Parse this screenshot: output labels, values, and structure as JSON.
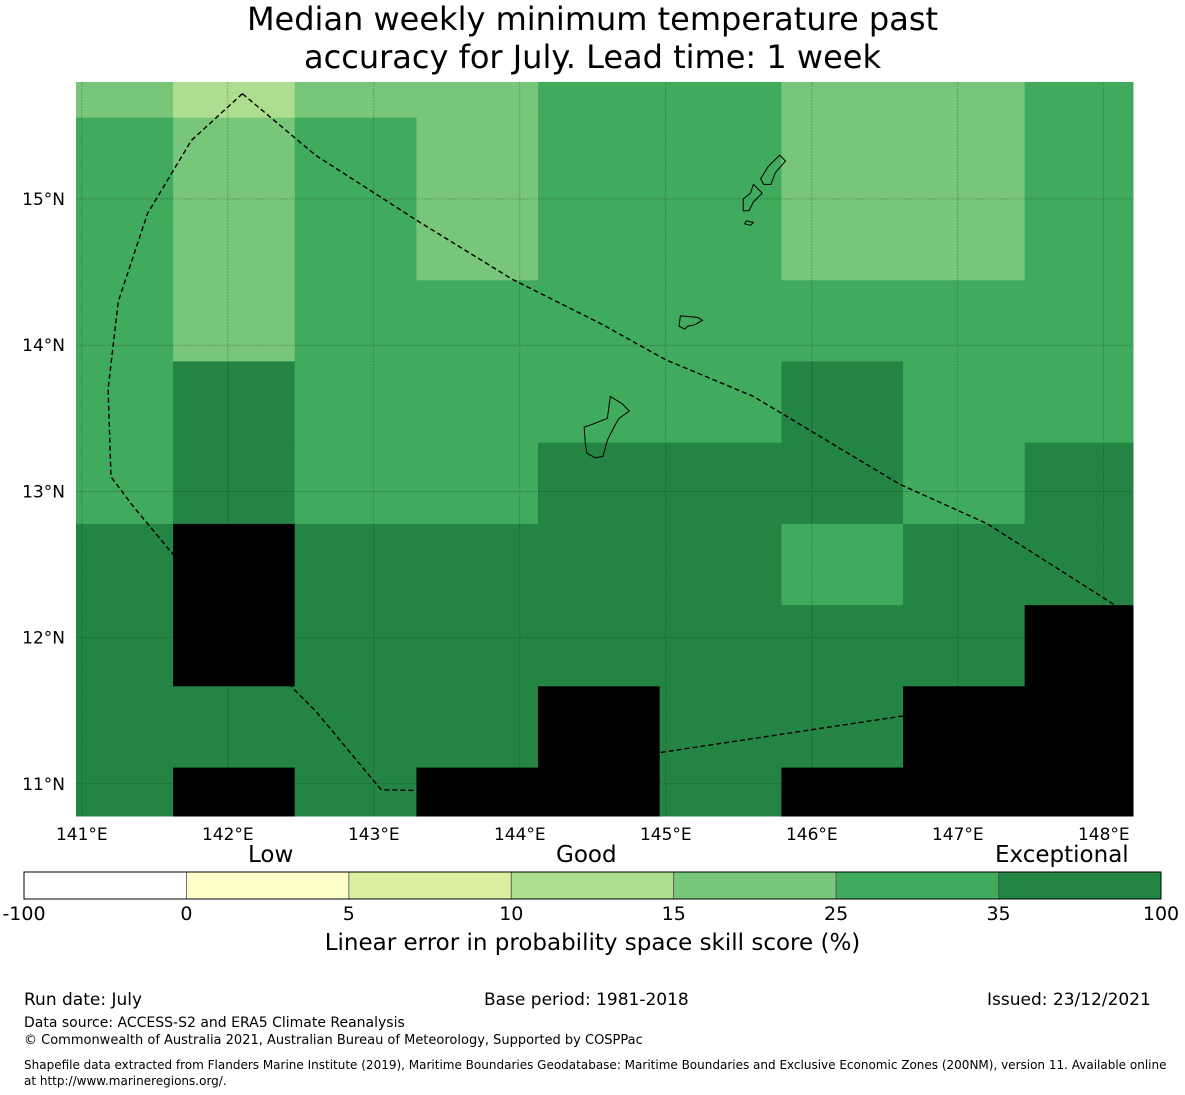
{
  "title": {
    "line1": "Median weekly minimum temperature past",
    "line2": "accuracy for July. Lead time: 1 week"
  },
  "map": {
    "lon_range": [
      140.96,
      148.2
    ],
    "lat_range": [
      10.78,
      15.8
    ],
    "lon_ticks": [
      {
        "value": 141,
        "label": "141°E"
      },
      {
        "value": 142,
        "label": "142°E"
      },
      {
        "value": 143,
        "label": "143°E"
      },
      {
        "value": 144,
        "label": "144°E"
      },
      {
        "value": 145,
        "label": "145°E"
      },
      {
        "value": 146,
        "label": "146°E"
      },
      {
        "value": 147,
        "label": "147°E"
      },
      {
        "value": 148,
        "label": "148°E"
      }
    ],
    "lat_ticks": [
      {
        "value": 15,
        "label": "15°N"
      },
      {
        "value": 14,
        "label": "14°N"
      },
      {
        "value": 13,
        "label": "13°N"
      },
      {
        "value": 12,
        "label": "12°N"
      },
      {
        "value": 11,
        "label": "11°N"
      }
    ],
    "grid_lines": true,
    "cell_lon_edges": [
      140.96,
      141.625,
      142.458,
      143.292,
      144.125,
      144.958,
      145.792,
      146.625,
      147.458,
      148.2
    ],
    "cell_lat_edges": [
      15.8,
      15.556,
      14.444,
      13.889,
      13.333,
      12.778,
      12.222,
      11.667,
      11.111,
      10.78
    ],
    "cell_classes": [
      [
        4,
        3,
        4,
        4,
        5,
        5,
        4,
        4,
        5
      ],
      [
        5,
        4,
        5,
        4,
        5,
        5,
        4,
        4,
        5
      ],
      [
        5,
        4,
        5,
        5,
        5,
        5,
        5,
        5,
        5
      ],
      [
        5,
        6,
        5,
        5,
        5,
        5,
        6,
        5,
        5
      ],
      [
        5,
        6,
        5,
        5,
        6,
        6,
        6,
        5,
        6
      ],
      [
        6,
        7,
        6,
        6,
        6,
        6,
        5,
        6,
        6
      ],
      [
        6,
        7,
        6,
        6,
        6,
        6,
        6,
        6,
        7
      ],
      [
        6,
        6,
        6,
        6,
        7,
        6,
        6,
        7,
        7
      ],
      [
        6,
        7,
        6,
        7,
        7,
        6,
        7,
        7,
        7
      ]
    ],
    "eez_boundary": [
      [
        142.1,
        15.72
      ],
      [
        141.75,
        15.4
      ],
      [
        141.45,
        14.9
      ],
      [
        141.25,
        14.3
      ],
      [
        141.18,
        13.7
      ],
      [
        141.2,
        13.1
      ],
      [
        141.35,
        12.9
      ],
      [
        141.6,
        12.6
      ],
      [
        142.1,
        12.0
      ],
      [
        142.6,
        11.5
      ],
      [
        143.05,
        10.96
      ],
      [
        143.45,
        10.95
      ],
      [
        144.2,
        11.1
      ],
      [
        145.2,
        11.25
      ],
      [
        146.2,
        11.4
      ],
      [
        147.2,
        11.55
      ],
      [
        147.75,
        11.63
      ],
      [
        148.08,
        12.22
      ],
      [
        147.2,
        12.78
      ],
      [
        146.6,
        13.05
      ],
      [
        145.6,
        13.65
      ],
      [
        145.0,
        13.9
      ],
      [
        144.55,
        14.15
      ],
      [
        143.95,
        14.45
      ],
      [
        143.3,
        14.85
      ],
      [
        142.6,
        15.3
      ],
      [
        142.1,
        15.72
      ]
    ],
    "islands": [
      [
        [
          144.62,
          13.65
        ],
        [
          144.7,
          13.6
        ],
        [
          144.75,
          13.55
        ],
        [
          144.68,
          13.5
        ],
        [
          144.65,
          13.45
        ],
        [
          144.6,
          13.35
        ],
        [
          144.57,
          13.24
        ],
        [
          144.52,
          13.23
        ],
        [
          144.46,
          13.26
        ],
        [
          144.45,
          13.32
        ],
        [
          144.44,
          13.44
        ],
        [
          144.5,
          13.46
        ],
        [
          144.6,
          13.5
        ],
        [
          144.62,
          13.65
        ]
      ],
      [
        [
          145.1,
          14.2
        ],
        [
          145.22,
          14.19
        ],
        [
          145.25,
          14.17
        ],
        [
          145.2,
          14.14
        ],
        [
          145.15,
          14.13
        ],
        [
          145.13,
          14.11
        ],
        [
          145.09,
          14.13
        ],
        [
          145.1,
          14.2
        ]
      ],
      [
        [
          145.78,
          15.3
        ],
        [
          145.82,
          15.26
        ],
        [
          145.75,
          15.18
        ],
        [
          145.72,
          15.1
        ],
        [
          145.67,
          15.1
        ],
        [
          145.65,
          15.14
        ],
        [
          145.7,
          15.22
        ],
        [
          145.78,
          15.3
        ]
      ],
      [
        [
          145.6,
          15.1
        ],
        [
          145.66,
          15.04
        ],
        [
          145.6,
          14.98
        ],
        [
          145.57,
          14.92
        ],
        [
          145.53,
          14.92
        ],
        [
          145.53,
          15.0
        ],
        [
          145.58,
          15.04
        ],
        [
          145.6,
          15.1
        ]
      ],
      [
        [
          145.55,
          14.85
        ],
        [
          145.6,
          14.84
        ],
        [
          145.58,
          14.82
        ],
        [
          145.54,
          14.83
        ],
        [
          145.55,
          14.85
        ]
      ]
    ]
  },
  "colorbar": {
    "categories": [
      "Low",
      "Good",
      "Exceptional"
    ],
    "boundaries": [
      "-100",
      "0",
      "5",
      "10",
      "15",
      "25",
      "35",
      "100"
    ],
    "colors": [
      "#ffffff",
      "#ffffcc",
      "#d9f0a3",
      "#addd8e",
      "#78c679",
      "#41ab5d",
      "#238443"
    ],
    "label": "Linear error in probability space skill score (%)"
  },
  "footer": {
    "run_date": "Run date: July",
    "base_period": "Base period: 1981-2018",
    "issued": "Issued: 23/12/2021",
    "data_source": "Data source: ACCESS-S2 and ERA5 Climate Reanalysis",
    "copyright": "© Commonwealth of Australia 2021, Australian Bureau of Meteorology, Supported by COSPPac",
    "shapefile": "Shapefile data extracted from Flanders Marine Institute (2019), Maritime Boundaries Geodatabase: Maritime Boundaries and Exclusive Economic Zones (200NM), version 11. Available online at http://www.marineregions.org/."
  }
}
